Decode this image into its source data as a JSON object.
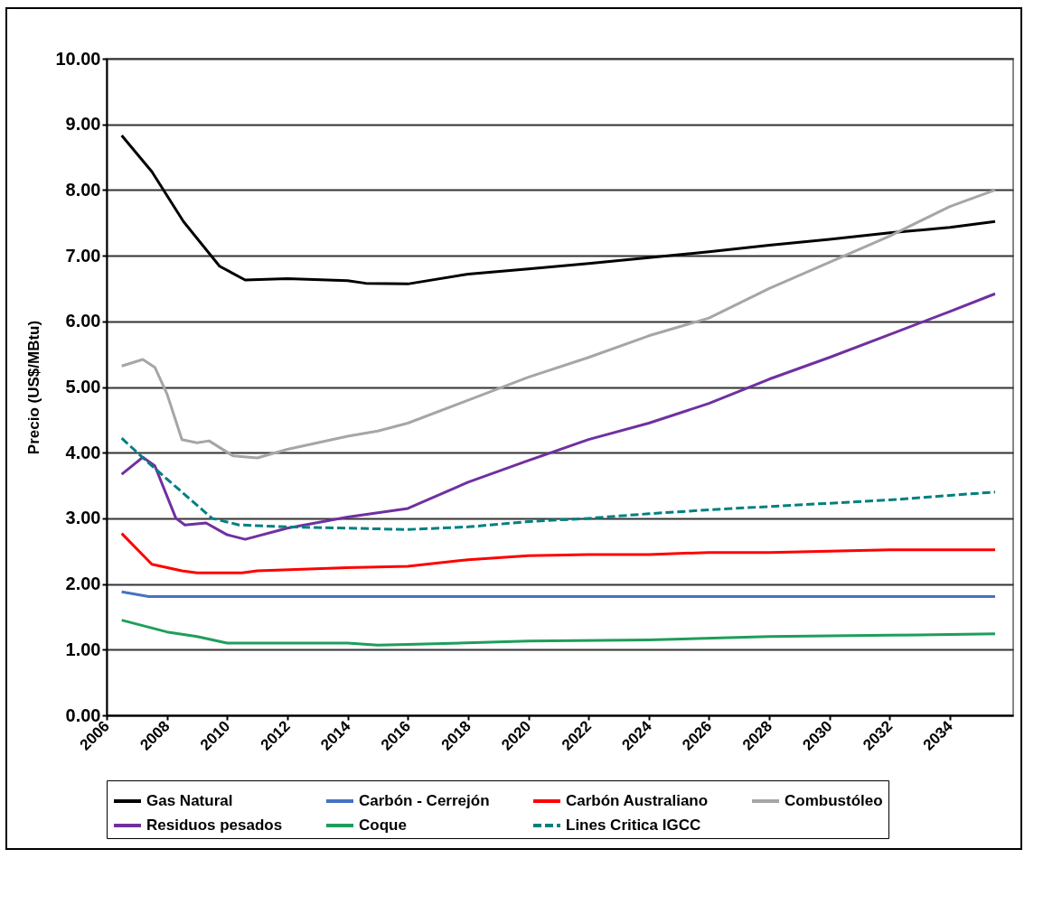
{
  "chart_data": {
    "type": "line",
    "ylabel": "Precio (US$/MBtu)",
    "xlim": [
      2006,
      2036.1
    ],
    "xticks": [
      2006,
      2008,
      2010,
      2012,
      2014,
      2016,
      2018,
      2020,
      2022,
      2024,
      2026,
      2028,
      2030,
      2032,
      2034
    ],
    "ylim": [
      0,
      10
    ],
    "yticks": [
      {
        "value": 0,
        "label": "0.00"
      },
      {
        "value": 1,
        "label": "1.00"
      },
      {
        "value": 2,
        "label": "2.00"
      },
      {
        "value": 3,
        "label": "3.00"
      },
      {
        "value": 4,
        "label": "4.00"
      },
      {
        "value": 5,
        "label": "5.00"
      },
      {
        "value": 6,
        "label": "6.00"
      },
      {
        "value": 7,
        "label": "7.00"
      },
      {
        "value": 8,
        "label": "8.00"
      },
      {
        "value": 9,
        "label": "9.00"
      },
      {
        "value": 10,
        "label": "10.00"
      }
    ],
    "grid": "y",
    "legend": "bottom",
    "line_style": "solid",
    "series": [
      {
        "name": "Gas Natural",
        "color": "#000000",
        "x": [
          2006.5,
          2007.5,
          2008.55,
          2009.75,
          2010.6,
          2012,
          2014,
          2014.6,
          2016,
          2018,
          2020,
          2022,
          2024,
          2026,
          2028,
          2030,
          2032,
          2034,
          2035.5
        ],
        "values": [
          8.83,
          8.28,
          7.52,
          6.84,
          6.63,
          6.65,
          6.62,
          6.58,
          6.57,
          6.72,
          6.8,
          6.88,
          6.97,
          7.06,
          7.16,
          7.25,
          7.35,
          7.43,
          7.52
        ]
      },
      {
        "name": "Carbón - Cerrejón",
        "color": "#4472c4",
        "x": [
          2006.5,
          2007.4,
          2010,
          2020,
          2030,
          2035.5
        ],
        "values": [
          1.88,
          1.81,
          1.81,
          1.81,
          1.81,
          1.81
        ]
      },
      {
        "name": "Carbón Australiano",
        "color": "#ff0000",
        "x": [
          2006.5,
          2007.5,
          2008.5,
          2009,
          2010.5,
          2011,
          2014,
          2016,
          2018,
          2020,
          2022,
          2024,
          2026,
          2028,
          2030,
          2032,
          2035.5
        ],
        "values": [
          2.77,
          2.3,
          2.2,
          2.17,
          2.17,
          2.2,
          2.25,
          2.27,
          2.37,
          2.43,
          2.45,
          2.45,
          2.48,
          2.48,
          2.5,
          2.52,
          2.52
        ]
      },
      {
        "name": "Combustóleo",
        "color": "#a6a6a6",
        "x": [
          2006.5,
          2007.2,
          2007.6,
          2008,
          2008.5,
          2009,
          2009.4,
          2010.2,
          2011,
          2012,
          2014,
          2015,
          2016,
          2018,
          2020,
          2022,
          2024,
          2026,
          2028,
          2030,
          2032,
          2034,
          2035.5
        ],
        "values": [
          5.32,
          5.42,
          5.3,
          4.9,
          4.2,
          4.15,
          4.18,
          3.95,
          3.92,
          4.05,
          4.25,
          4.33,
          4.45,
          4.8,
          5.15,
          5.45,
          5.78,
          6.05,
          6.5,
          6.9,
          7.3,
          7.75,
          8.0
        ]
      },
      {
        "name": "Residuos pesados",
        "color": "#7030a0",
        "x": [
          2006.5,
          2007.2,
          2007.6,
          2008.3,
          2008.6,
          2009.3,
          2010,
          2010.6,
          2012,
          2014,
          2016,
          2018,
          2020,
          2022,
          2024,
          2026,
          2028,
          2030,
          2032,
          2034,
          2035.5
        ],
        "values": [
          3.67,
          3.93,
          3.8,
          3.0,
          2.9,
          2.93,
          2.75,
          2.68,
          2.85,
          3.02,
          3.15,
          3.55,
          3.88,
          4.2,
          4.45,
          4.75,
          5.12,
          5.45,
          5.8,
          6.15,
          6.42
        ]
      },
      {
        "name": "Coque",
        "color": "#1e9e5a",
        "x": [
          2006.5,
          2008,
          2009,
          2010,
          2014,
          2015,
          2016,
          2020,
          2024,
          2028,
          2032,
          2035.5
        ],
        "values": [
          1.45,
          1.27,
          1.2,
          1.1,
          1.1,
          1.07,
          1.08,
          1.13,
          1.15,
          1.2,
          1.22,
          1.24
        ]
      },
      {
        "name": "Lines Critica IGCC",
        "color": "#008080",
        "line_style": "dashed",
        "x": [
          2006.5,
          2007.5,
          2008.5,
          2009.5,
          2010.4,
          2012,
          2014,
          2016,
          2018,
          2020,
          2022,
          2024,
          2026,
          2028,
          2030,
          2032,
          2034,
          2035.5
        ],
        "values": [
          4.22,
          3.8,
          3.4,
          3.0,
          2.9,
          2.87,
          2.85,
          2.83,
          2.87,
          2.95,
          3.0,
          3.07,
          3.13,
          3.18,
          3.23,
          3.28,
          3.35,
          3.4
        ]
      }
    ]
  }
}
